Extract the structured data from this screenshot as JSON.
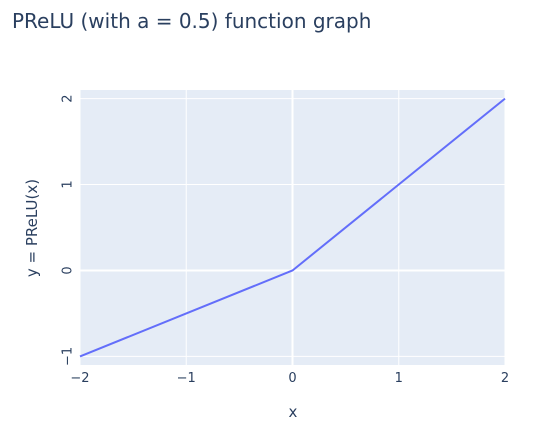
{
  "chart_data": {
    "type": "line",
    "title": "PReLU (with a = 0.5) function graph",
    "xlabel": "x",
    "ylabel": "y = PReLU(x)",
    "xlim": [
      -2,
      2
    ],
    "ylim": [
      -1.1,
      2.1
    ],
    "x_ticks": [
      -2,
      -1,
      0,
      1,
      2
    ],
    "x_tick_labels": [
      "−2",
      "−1",
      "0",
      "1",
      "2"
    ],
    "y_ticks": [
      -1,
      0,
      1,
      2
    ],
    "y_tick_labels": [
      "−1",
      "0",
      "1",
      "2"
    ],
    "grid": true,
    "series": [
      {
        "x": [
          -2,
          -1,
          0,
          1,
          2
        ],
        "y": [
          -1,
          -0.5,
          0,
          1,
          2
        ],
        "color": "#636efa"
      }
    ]
  },
  "colors": {
    "plot_bg": "#e5ecf6",
    "grid": "#ffffff",
    "text": "#2a3f5f"
  }
}
